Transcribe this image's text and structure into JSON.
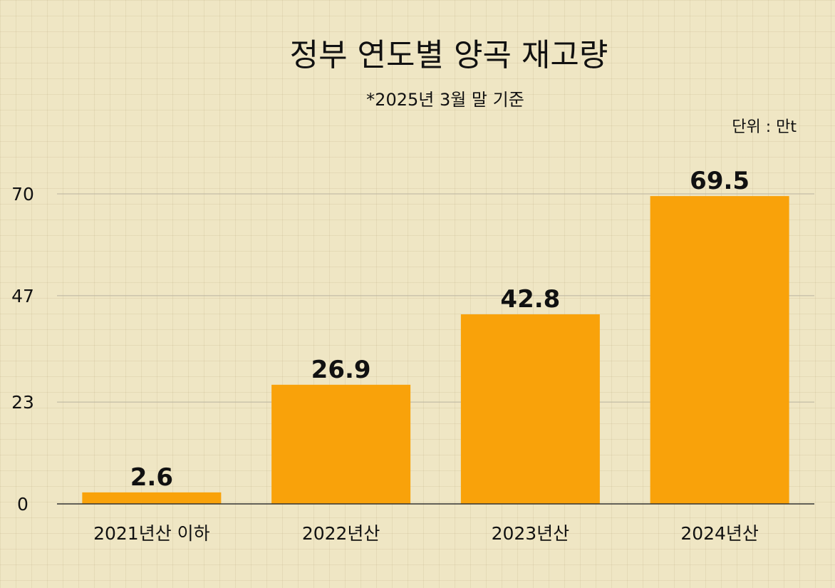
{
  "chart_data": {
    "type": "bar",
    "title": "정부 연도별 양곡 재고량",
    "subtitle": "*2025년 3월 말 기준",
    "unit": "단위 : 만t",
    "categories": [
      "2021년산 이하",
      "2022년산",
      "2023년산",
      "2024년산"
    ],
    "values": [
      2.6,
      26.9,
      42.8,
      69.5
    ],
    "data_labels": [
      "2.6",
      "26.9",
      "42.8",
      "69.5"
    ],
    "yticks": [
      0,
      23,
      47,
      70
    ],
    "ylim": [
      0,
      70
    ],
    "grid": true,
    "bar_color": "#f9a20a"
  }
}
